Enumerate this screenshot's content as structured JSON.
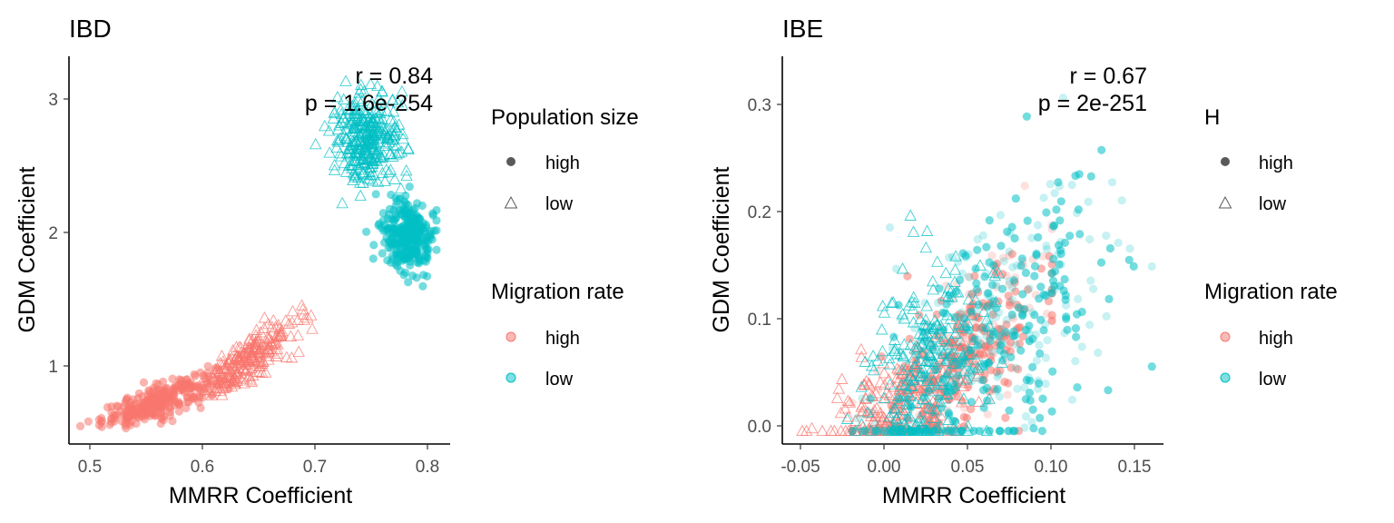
{
  "colors": {
    "high": "#F8766D",
    "low": "#00BFC4",
    "legend_dark": "#595959"
  },
  "chart_data": [
    {
      "type": "scatter",
      "title": "IBD",
      "xlabel": "MMRR Coefficient",
      "ylabel": "GDM Coefficient",
      "xlim": [
        0.485,
        0.822
      ],
      "ylim": [
        0.42,
        3.3
      ],
      "xticks": [
        0.5,
        0.6,
        0.7,
        0.8
      ],
      "xtick_labels": [
        "0.5",
        "0.6",
        "0.7",
        "0.8"
      ],
      "yticks": [
        1,
        2,
        3
      ],
      "ytick_labels": [
        "1",
        "2",
        "3"
      ],
      "annotation": [
        "r = 0.84",
        "p = 1.6e-254"
      ],
      "grid": false,
      "series": [
        {
          "pop": "high",
          "mig": "high",
          "n": 300,
          "cx": 0.565,
          "cy": 0.74,
          "sx": 0.025,
          "sy": 0.06,
          "slope": 3.0,
          "xmin": 0.495,
          "xmax": 0.64
        },
        {
          "pop": "low",
          "mig": "high",
          "n": 230,
          "cx": 0.645,
          "cy": 1.06,
          "sx": 0.02,
          "sy": 0.08,
          "slope": 5.0,
          "xmin": 0.59,
          "xmax": 0.7
        },
        {
          "pop": "high",
          "mig": "low",
          "n": 280,
          "cx": 0.785,
          "cy": 1.96,
          "sx": 0.012,
          "sy": 0.14,
          "slope": 0,
          "xmin": 0.735,
          "xmax": 0.81
        },
        {
          "pop": "low",
          "mig": "low",
          "n": 320,
          "cx": 0.748,
          "cy": 2.68,
          "sx": 0.015,
          "sy": 0.17,
          "slope": 0,
          "xmin": 0.7,
          "xmax": 0.785
        }
      ],
      "legend": {
        "placement": "right",
        "groups": [
          {
            "title": "Population size",
            "entries": [
              {
                "label": "high",
                "shape": "circle"
              },
              {
                "label": "low",
                "shape": "triangle"
              }
            ]
          },
          {
            "title": "Migration rate",
            "entries": [
              {
                "label": "high",
                "color": "high"
              },
              {
                "label": "low",
                "color": "low"
              }
            ]
          }
        ]
      }
    },
    {
      "type": "scatter",
      "title": "IBE",
      "xlabel": "MMRR Coefficient",
      "ylabel": "GDM Coefficient",
      "xlim": [
        -0.062,
        0.167
      ],
      "ylim": [
        -0.012,
        0.345
      ],
      "xticks": [
        -0.05,
        0.0,
        0.05,
        0.1,
        0.15
      ],
      "xtick_labels": [
        "-0.05",
        "0.00",
        "0.05",
        "0.10",
        "0.15"
      ],
      "yticks": [
        0.0,
        0.1,
        0.2,
        0.3
      ],
      "ytick_labels": [
        "0.0",
        "0.1",
        "0.2",
        "0.3"
      ],
      "annotation": [
        "r = 0.67",
        "p = 2e-251"
      ],
      "grid": false,
      "series": [
        {
          "pop": "high",
          "mig": "high",
          "n": 320,
          "cx": 0.045,
          "cy": 0.065,
          "sx": 0.028,
          "sy": 0.035,
          "slope": 1.2,
          "xmin": -0.02,
          "xmax": 0.1
        },
        {
          "pop": "low",
          "mig": "high",
          "n": 200,
          "cx": 0.01,
          "cy": 0.03,
          "sx": 0.022,
          "sy": 0.025,
          "slope": 0.6,
          "xmin": -0.05,
          "xmax": 0.06
        },
        {
          "pop": "high",
          "mig": "low",
          "n": 380,
          "cx": 0.07,
          "cy": 0.09,
          "sx": 0.038,
          "sy": 0.06,
          "slope": 1.2,
          "xmin": -0.02,
          "xmax": 0.16
        },
        {
          "pop": "low",
          "mig": "low",
          "n": 240,
          "cx": 0.025,
          "cy": 0.065,
          "sx": 0.018,
          "sy": 0.045,
          "slope": 0.9,
          "xmin": -0.03,
          "xmax": 0.07
        }
      ],
      "legend": {
        "placement": "right",
        "groups": [
          {
            "title": "H",
            "entries": [
              {
                "label": "high",
                "shape": "circle"
              },
              {
                "label": "low",
                "shape": "triangle"
              }
            ]
          },
          {
            "title": "Migration rate",
            "entries": [
              {
                "label": "high",
                "color": "high"
              },
              {
                "label": "low",
                "color": "low"
              }
            ]
          }
        ]
      }
    }
  ]
}
